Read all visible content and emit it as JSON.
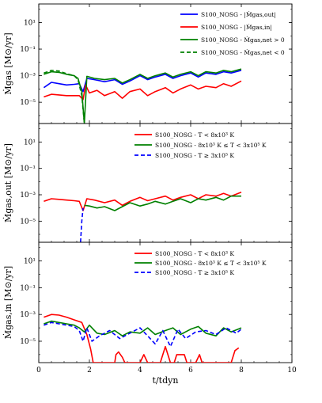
{
  "chart_data": [
    {
      "type": "line",
      "ylabel": "Ṁgas [M⊙/yr]",
      "xlim": [
        0,
        10
      ],
      "ylim_log10": [
        -6.6,
        2.4
      ],
      "yscale": "log",
      "yticks": [
        "10^1",
        "10^-1",
        "10^-3",
        "10^-5"
      ],
      "legend_position": "top-right",
      "series": [
        {
          "name": "S100_NOSG - |Ṁgas,out|",
          "color": "#0000ff",
          "style": "solid",
          "x": [
            0.2,
            0.5,
            0.8,
            1.1,
            1.4,
            1.6,
            1.75,
            1.9,
            2.2,
            2.6,
            3.0,
            3.3,
            3.6,
            4.0,
            4.3,
            4.6,
            5.0,
            5.3,
            5.6,
            6.0,
            6.3,
            6.6,
            7.0,
            7.3,
            7.6,
            8.0
          ],
          "y": [
            -3.9,
            -3.5,
            -3.6,
            -3.7,
            -3.65,
            -3.6,
            -4.2,
            -3.2,
            -3.3,
            -3.45,
            -3.3,
            -3.65,
            -3.4,
            -3.0,
            -3.3,
            -3.1,
            -2.9,
            -3.2,
            -3.0,
            -2.8,
            -3.1,
            -2.8,
            -2.9,
            -2.7,
            -2.8,
            -2.6
          ]
        },
        {
          "name": "S100_NOSG - |Ṁgas,in|",
          "color": "#ff0000",
          "style": "solid",
          "x": [
            0.2,
            0.5,
            0.8,
            1.1,
            1.4,
            1.6,
            1.75,
            1.85,
            2.0,
            2.3,
            2.6,
            3.0,
            3.3,
            3.6,
            4.0,
            4.3,
            4.6,
            5.0,
            5.3,
            5.6,
            6.0,
            6.3,
            6.6,
            7.0,
            7.3,
            7.6,
            8.0
          ],
          "y": [
            -4.6,
            -4.4,
            -4.45,
            -4.5,
            -4.5,
            -4.5,
            -4.8,
            -3.7,
            -4.3,
            -4.1,
            -4.5,
            -4.2,
            -4.7,
            -4.2,
            -4.0,
            -4.5,
            -4.2,
            -3.9,
            -4.3,
            -4.0,
            -3.7,
            -4.0,
            -3.8,
            -3.9,
            -3.6,
            -3.8,
            -3.4
          ]
        },
        {
          "name": "S100_NOSG - Ṁgas,net > 0",
          "color": "#008000",
          "style": "solid",
          "x": [
            0.2,
            0.5,
            0.8,
            1.1,
            1.4,
            1.55,
            1.7,
            1.8,
            1.9,
            2.2,
            2.6,
            3.0,
            3.3,
            3.6,
            4.0,
            4.3,
            4.6,
            5.0,
            5.3,
            5.6,
            6.0,
            6.3,
            6.6,
            7.0,
            7.3,
            7.6,
            8.0
          ],
          "y": [
            -2.9,
            -2.7,
            -2.75,
            -2.9,
            -3.0,
            -3.2,
            -4.2,
            -6.6,
            -3.05,
            -3.2,
            -3.3,
            -3.2,
            -3.55,
            -3.3,
            -2.9,
            -3.2,
            -3.0,
            -2.8,
            -3.1,
            -2.9,
            -2.7,
            -3.0,
            -2.7,
            -2.8,
            -2.6,
            -2.7,
            -2.5
          ]
        },
        {
          "name": "S100_NOSG - Ṁgas,net < 0",
          "color": "#008000",
          "style": "dashed",
          "x": [
            0.2,
            0.5,
            0.8,
            1.1,
            1.4,
            1.55,
            1.7,
            1.8
          ],
          "y": [
            -2.8,
            -2.6,
            -2.65,
            -2.85,
            -3.0,
            -3.3,
            -4.5,
            -6.6
          ]
        }
      ]
    },
    {
      "type": "line",
      "ylabel": "Ṁgas,out [M⊙/yr]",
      "xlim": [
        0,
        10
      ],
      "ylim_log10": [
        -6.6,
        2.4
      ],
      "yscale": "log",
      "yticks": [
        "10^1",
        "10^-1",
        "10^-3",
        "10^-5"
      ],
      "legend_position": "top-left",
      "series": [
        {
          "name": "S100_NOSG - T < 8x10³ K",
          "color": "#ff0000",
          "style": "solid",
          "x": [
            0.2,
            0.5,
            0.8,
            1.1,
            1.4,
            1.6,
            1.75,
            1.9,
            2.2,
            2.6,
            3.0,
            3.3,
            3.6,
            4.0,
            4.3,
            4.6,
            5.0,
            5.3,
            5.6,
            6.0,
            6.3,
            6.6,
            7.0,
            7.3,
            7.6,
            8.0
          ],
          "y": [
            -3.5,
            -3.3,
            -3.35,
            -3.4,
            -3.45,
            -3.5,
            -4.2,
            -3.3,
            -3.4,
            -3.6,
            -3.4,
            -3.8,
            -3.5,
            -3.2,
            -3.45,
            -3.3,
            -3.1,
            -3.4,
            -3.2,
            -3.0,
            -3.3,
            -3.0,
            -3.1,
            -2.9,
            -3.1,
            -2.8
          ]
        },
        {
          "name": "S100_NOSG - 8x10³ K ≤ T < 3x10⁵ K",
          "color": "#008000",
          "style": "solid",
          "x": [
            1.8,
            2.0,
            2.3,
            2.6,
            3.0,
            3.3,
            3.6,
            4.0,
            4.3,
            4.6,
            5.0,
            5.3,
            5.6,
            6.0,
            6.3,
            6.6,
            7.0,
            7.3,
            7.6,
            8.0
          ],
          "y": [
            -3.8,
            -3.85,
            -4.0,
            -3.9,
            -4.2,
            -3.9,
            -3.6,
            -3.85,
            -3.7,
            -3.5,
            -3.7,
            -3.5,
            -3.3,
            -3.6,
            -3.3,
            -3.4,
            -3.2,
            -3.4,
            -3.1,
            -3.1
          ]
        },
        {
          "name": "S100_NOSG - T ≥ 3x10⁵ K",
          "color": "#0000ff",
          "style": "dashed",
          "x": [
            1.65,
            1.7,
            1.75
          ],
          "y": [
            -6.6,
            -5.0,
            -4.0
          ]
        }
      ]
    },
    {
      "type": "line",
      "xlabel": "t/tdyn",
      "ylabel": "Ṁgas,in [M⊙/yr]",
      "xlim": [
        0,
        10
      ],
      "xticks": [
        "0",
        "2",
        "4",
        "6",
        "8",
        "10"
      ],
      "ylim_log10": [
        -6.6,
        2.4
      ],
      "yscale": "log",
      "yticks": [
        "10^1",
        "10^-1",
        "10^-3",
        "10^-5"
      ],
      "legend_position": "top-right",
      "series": [
        {
          "name": "S100_NOSG - T < 8x10³ K",
          "color": "#ff0000",
          "style": "solid",
          "x": [
            0.2,
            0.5,
            0.8,
            1.1,
            1.4,
            1.7,
            1.9,
            2.05,
            2.15,
            2.3,
            3.0,
            3.05,
            3.15,
            3.3,
            3.4,
            4.0,
            4.15,
            4.3,
            4.4,
            4.8,
            5.0,
            5.2,
            5.35,
            5.45,
            5.6,
            5.75,
            5.85,
            6.2,
            6.35,
            6.45,
            7.6,
            7.75,
            7.9
          ],
          "y": [
            -3.2,
            -3.0,
            -3.05,
            -3.2,
            -3.4,
            -3.6,
            -4.5,
            -5.6,
            -6.6,
            -6.6,
            -6.6,
            -6.0,
            -5.8,
            -6.2,
            -6.6,
            -6.6,
            -6.0,
            -6.6,
            -6.6,
            -6.6,
            -5.4,
            -6.6,
            -6.6,
            -6.0,
            -6.0,
            -6.0,
            -6.6,
            -6.6,
            -6.0,
            -6.6,
            -6.6,
            -5.7,
            -5.5
          ]
        },
        {
          "name": "S100_NOSG - 8x10³ K ≤ T < 3x10⁵ K",
          "color": "#008000",
          "style": "solid",
          "x": [
            0.2,
            0.5,
            0.8,
            1.1,
            1.4,
            1.6,
            1.8,
            2.0,
            2.3,
            2.6,
            3.0,
            3.3,
            3.6,
            4.0,
            4.3,
            4.6,
            5.0,
            5.3,
            5.6,
            6.0,
            6.3,
            6.6,
            7.0,
            7.3,
            7.6,
            8.0
          ],
          "y": [
            -3.7,
            -3.5,
            -3.6,
            -3.7,
            -3.8,
            -4.0,
            -4.3,
            -3.8,
            -4.4,
            -4.5,
            -4.2,
            -4.6,
            -4.3,
            -4.4,
            -4.0,
            -4.5,
            -4.2,
            -4.0,
            -4.5,
            -4.1,
            -3.9,
            -4.4,
            -4.6,
            -4.0,
            -4.3,
            -4.0
          ]
        },
        {
          "name": "S100_NOSG - T ≥ 3x10⁵ K",
          "color": "#0000ff",
          "style": "dashed",
          "x": [
            0.2,
            0.5,
            0.8,
            1.1,
            1.4,
            1.6,
            1.75,
            1.9,
            2.1,
            2.4,
            2.8,
            3.2,
            3.6,
            4.0,
            4.3,
            4.6,
            4.9,
            5.2,
            5.5,
            5.8,
            6.2,
            6.6,
            7.0,
            7.4,
            7.8,
            8.0
          ],
          "y": [
            -3.8,
            -3.6,
            -3.7,
            -3.8,
            -3.9,
            -4.2,
            -5.0,
            -4.0,
            -5.0,
            -4.6,
            -4.2,
            -4.8,
            -4.4,
            -4.0,
            -4.6,
            -5.2,
            -4.2,
            -5.4,
            -4.1,
            -4.8,
            -4.3,
            -4.2,
            -4.5,
            -4.0,
            -4.4,
            -4.1
          ]
        }
      ]
    }
  ]
}
